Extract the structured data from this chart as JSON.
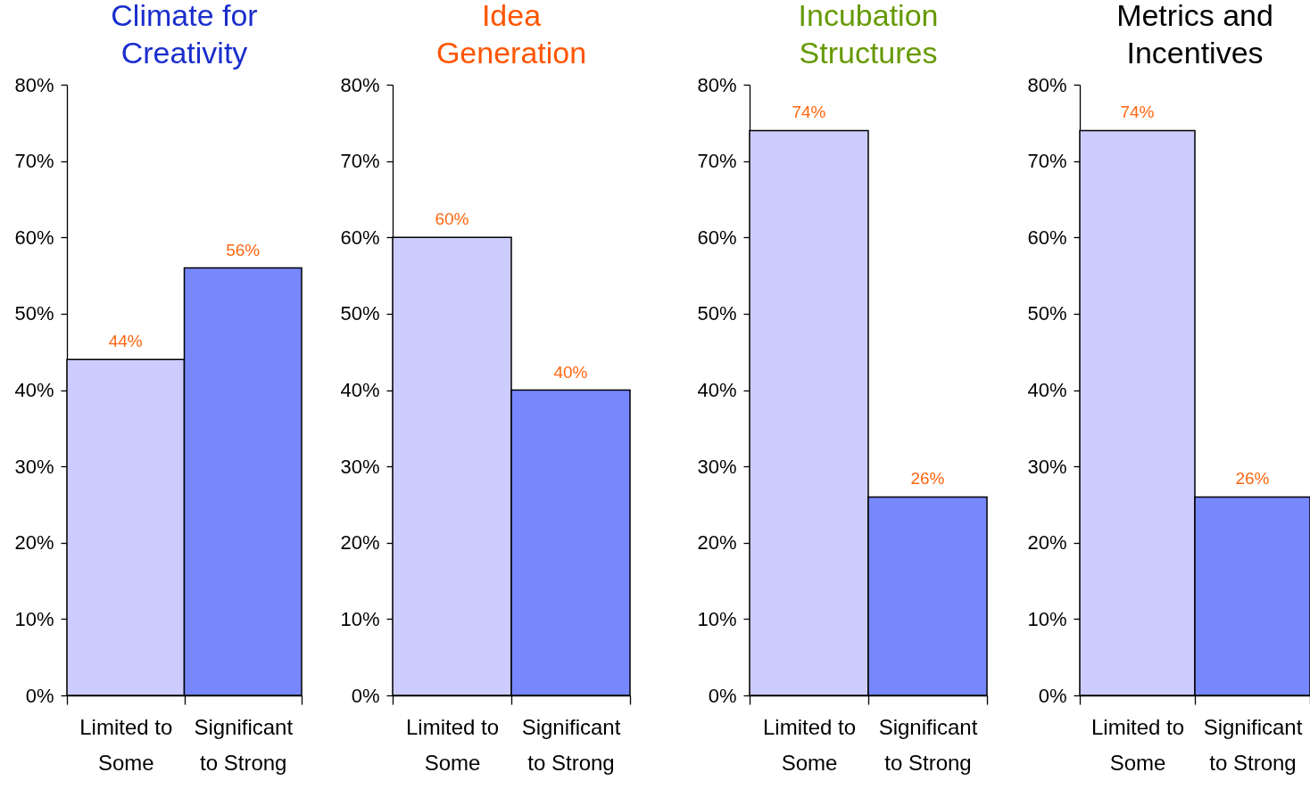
{
  "chart_data": [
    {
      "type": "bar",
      "title": "Climate for\nCreativity",
      "categories": [
        "Limited to\nSome",
        "Significant\nto Strong"
      ],
      "values": [
        44,
        56
      ],
      "colors": [
        "#ccccff",
        "#7788ff"
      ],
      "value_labels": [
        "44%",
        "56%"
      ],
      "ylim": [
        0,
        80
      ],
      "yticks": [
        {
          "value": 0,
          "label": "0%"
        },
        {
          "value": 10,
          "label": "10%"
        },
        {
          "value": 20,
          "label": "20%"
        },
        {
          "value": 30,
          "label": "30%"
        },
        {
          "value": 40,
          "label": "40%"
        },
        {
          "value": 50,
          "label": "50%"
        },
        {
          "value": 60,
          "label": "60%"
        },
        {
          "value": 70,
          "label": "70%"
        },
        {
          "value": 80,
          "label": "80%"
        }
      ]
    },
    {
      "type": "bar",
      "title": "Idea\nGeneration",
      "categories": [
        "Limited to\nSome",
        "Significant\nto Strong"
      ],
      "values": [
        60,
        40
      ],
      "colors": [
        "#ccccff",
        "#7788ff"
      ],
      "value_labels": [
        "60%",
        "40%"
      ],
      "ylim": [
        0,
        80
      ],
      "yticks": [
        {
          "value": 0,
          "label": "0%"
        },
        {
          "value": 10,
          "label": "10%"
        },
        {
          "value": 20,
          "label": "20%"
        },
        {
          "value": 30,
          "label": "30%"
        },
        {
          "value": 40,
          "label": "40%"
        },
        {
          "value": 50,
          "label": "50%"
        },
        {
          "value": 60,
          "label": "60%"
        },
        {
          "value": 70,
          "label": "70%"
        },
        {
          "value": 80,
          "label": "80%"
        }
      ]
    },
    {
      "type": "bar",
      "title": "Incubation\nStructures",
      "categories": [
        "Limited to\nSome",
        "Significant\nto Strong"
      ],
      "values": [
        74,
        26
      ],
      "colors": [
        "#ccccff",
        "#7788ff"
      ],
      "value_labels": [
        "74%",
        "26%"
      ],
      "ylim": [
        0,
        80
      ],
      "yticks": [
        {
          "value": 0,
          "label": "0%"
        },
        {
          "value": 10,
          "label": "10%"
        },
        {
          "value": 20,
          "label": "20%"
        },
        {
          "value": 30,
          "label": "30%"
        },
        {
          "value": 40,
          "label": "40%"
        },
        {
          "value": 50,
          "label": "50%"
        },
        {
          "value": 60,
          "label": "60%"
        },
        {
          "value": 70,
          "label": "70%"
        },
        {
          "value": 80,
          "label": "80%"
        }
      ]
    },
    {
      "type": "bar",
      "title": "Metrics and\nIncentives",
      "categories": [
        "Limited to\nSome",
        "Significant\nto Strong"
      ],
      "values": [
        74,
        26
      ],
      "colors": [
        "#ccccff",
        "#7788ff"
      ],
      "value_labels": [
        "74%",
        "26%"
      ],
      "ylim": [
        0,
        80
      ],
      "yticks": [
        {
          "value": 0,
          "label": "0%"
        },
        {
          "value": 10,
          "label": "10%"
        },
        {
          "value": 20,
          "label": "20%"
        },
        {
          "value": 30,
          "label": "30%"
        },
        {
          "value": 40,
          "label": "40%"
        },
        {
          "value": 50,
          "label": "50%"
        },
        {
          "value": 60,
          "label": "60%"
        },
        {
          "value": 70,
          "label": "70%"
        },
        {
          "value": 80,
          "label": "80%"
        }
      ]
    }
  ]
}
